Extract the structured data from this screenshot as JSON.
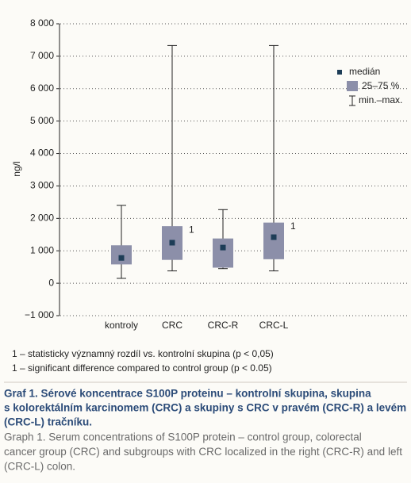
{
  "chart_data": {
    "type": "box",
    "y_label": "ng/l",
    "categories": [
      "kontroly",
      "CRC",
      "CRC-R",
      "CRC-L"
    ],
    "min": [
      150,
      380,
      450,
      380
    ],
    "q1": [
      580,
      720,
      480,
      740
    ],
    "median": [
      780,
      1250,
      1100,
      1420
    ],
    "q3": [
      1170,
      1760,
      1380,
      1870
    ],
    "max": [
      2400,
      7330,
      2270,
      7330
    ],
    "significance_labels": [
      null,
      "1",
      null,
      "1"
    ],
    "box_color": "#8c8fa9",
    "median_color": "#1d3d57",
    "ylim": [
      -1000,
      8000
    ],
    "yticks": [
      {
        "value": -1000,
        "label": "−1 000"
      },
      0,
      {
        "value": 1000,
        "label": "1 000"
      },
      {
        "value": 2000,
        "label": "2 000"
      },
      {
        "value": 3000,
        "label": "3 000"
      },
      {
        "value": 4000,
        "label": "4 000"
      },
      {
        "value": 5000,
        "label": "5 000"
      },
      {
        "value": 6000,
        "label": "6 000"
      },
      {
        "value": 7000,
        "label": "7 000"
      },
      {
        "value": 8000,
        "label": "8 000"
      }
    ],
    "grid": true,
    "legend": {
      "position": "upper right",
      "median": "medián",
      "box": "25–75 %",
      "whisker": "min.–max."
    }
  },
  "footnotes": [
    "1 – statisticky významný rozdíl vs. kontrolní skupina (p < 0,05)",
    "1 – significant difference compared to control group (p < 0.05)"
  ],
  "caption": {
    "title_lines": [
      "Graf 1. Sérové koncentrace S100P proteinu – kontrolní skupina, skupina",
      "s kolorektálním karcinomem (CRC) a skupiny s CRC v pravém (CRC-R) a levém",
      "(CRC-L) tračníku."
    ],
    "text_lines": [
      "Graph 1. Serum concentrations of S100P protein – control group, colorectal",
      "cancer group (CRC) and subgroups with CRC localized in the right (CRC-R) and left",
      "(CRC-L) colon."
    ]
  }
}
